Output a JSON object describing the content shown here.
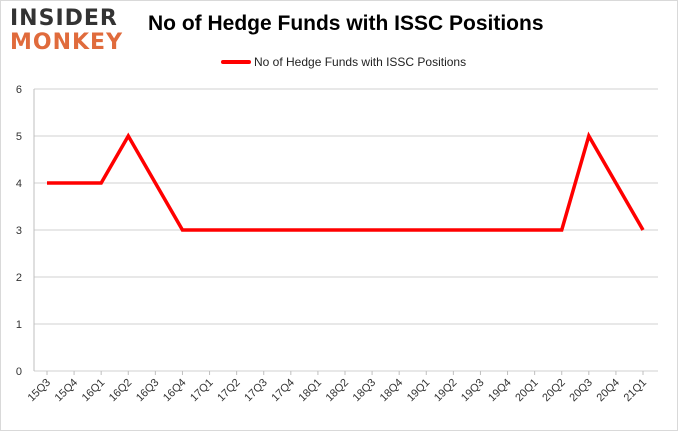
{
  "logo": {
    "line1": "INSIDER",
    "line2": "MONKEY"
  },
  "colors": {
    "series": "#ff0000",
    "grid": "#d0d0d0",
    "logo_accent": "#e06b3c"
  },
  "chart_data": {
    "type": "line",
    "title": "No of Hedge Funds with ISSC Positions",
    "xlabel": "",
    "ylabel": "",
    "categories": [
      "15Q3",
      "15Q4",
      "16Q1",
      "16Q2",
      "16Q3",
      "16Q4",
      "17Q1",
      "17Q2",
      "17Q3",
      "17Q4",
      "18Q1",
      "18Q2",
      "18Q3",
      "18Q4",
      "19Q1",
      "19Q2",
      "19Q3",
      "19Q4",
      "20Q1",
      "20Q2",
      "20Q3",
      "20Q4",
      "21Q1"
    ],
    "series": [
      {
        "name": "No of Hedge Funds with ISSC Positions",
        "values": [
          4,
          4,
          4,
          5,
          4,
          3,
          3,
          3,
          3,
          3,
          3,
          3,
          3,
          3,
          3,
          3,
          3,
          3,
          3,
          3,
          5,
          4,
          3
        ]
      }
    ],
    "ylim": [
      0,
      6
    ],
    "yticks": [
      0,
      1,
      2,
      3,
      4,
      5,
      6
    ],
    "grid": true,
    "legend_position": "top-center"
  }
}
